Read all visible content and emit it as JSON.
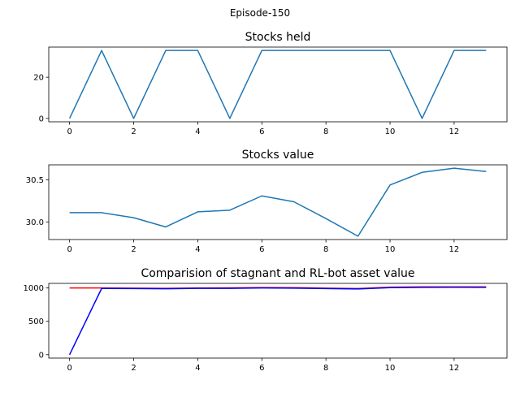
{
  "figure": {
    "suptitle": "Episode-150"
  },
  "chart_data": [
    {
      "type": "line",
      "title": "Stocks held",
      "xlabel": "",
      "ylabel": "",
      "x": [
        0,
        1,
        2,
        3,
        4,
        5,
        6,
        7,
        8,
        9,
        10,
        11,
        12,
        13
      ],
      "series": [
        {
          "name": "",
          "color": "#1f77b4",
          "values": [
            0,
            33,
            0,
            33,
            33,
            0,
            33,
            33,
            33,
            33,
            33,
            0,
            33,
            33
          ]
        }
      ],
      "xlim": [
        -0.65,
        13.65
      ],
      "ylim": [
        -1.65,
        34.65
      ],
      "xticks": [
        0,
        2,
        4,
        6,
        8,
        10,
        12
      ],
      "yticks": [
        0,
        20
      ],
      "grid": false
    },
    {
      "type": "line",
      "title": "Stocks value",
      "xlabel": "",
      "ylabel": "",
      "x": [
        0,
        1,
        2,
        3,
        4,
        5,
        6,
        7,
        8,
        9,
        10,
        11,
        12,
        13
      ],
      "series": [
        {
          "name": "",
          "color": "#1f77b4",
          "values": [
            30.11,
            30.11,
            30.05,
            29.94,
            30.12,
            30.14,
            30.31,
            30.24,
            30.04,
            29.83,
            30.44,
            30.59,
            30.64,
            30.6
          ]
        }
      ],
      "xlim": [
        -0.65,
        13.65
      ],
      "ylim": [
        29.79,
        30.68
      ],
      "xticks": [
        0,
        2,
        4,
        6,
        8,
        10,
        12
      ],
      "yticks": [
        30.0,
        30.5
      ],
      "ytick_labels": [
        "30.0",
        "30.5"
      ],
      "grid": false
    },
    {
      "type": "line",
      "title": "Comparision of stagnant and RL-bot asset value",
      "xlabel": "",
      "ylabel": "",
      "x": [
        0,
        1,
        2,
        3,
        4,
        5,
        6,
        7,
        8,
        9,
        10,
        11,
        12,
        13
      ],
      "series": [
        {
          "name": "",
          "color": "#ff0000",
          "values": [
            1000,
            1000,
            998,
            995,
            1001,
            1002,
            1007,
            1005,
            998,
            992,
            1012,
            1017,
            1018,
            1017
          ]
        },
        {
          "name": "",
          "color": "#0000ff",
          "values": [
            0,
            993,
            991,
            988,
            994,
            995,
            1000,
            998,
            991,
            985,
            1005,
            1010,
            1011,
            1010
          ]
        }
      ],
      "xlim": [
        -0.65,
        13.65
      ],
      "ylim": [
        -51,
        1069
      ],
      "xticks": [
        0,
        2,
        4,
        6,
        8,
        10,
        12
      ],
      "yticks": [
        0,
        500,
        1000
      ],
      "grid": false
    }
  ]
}
